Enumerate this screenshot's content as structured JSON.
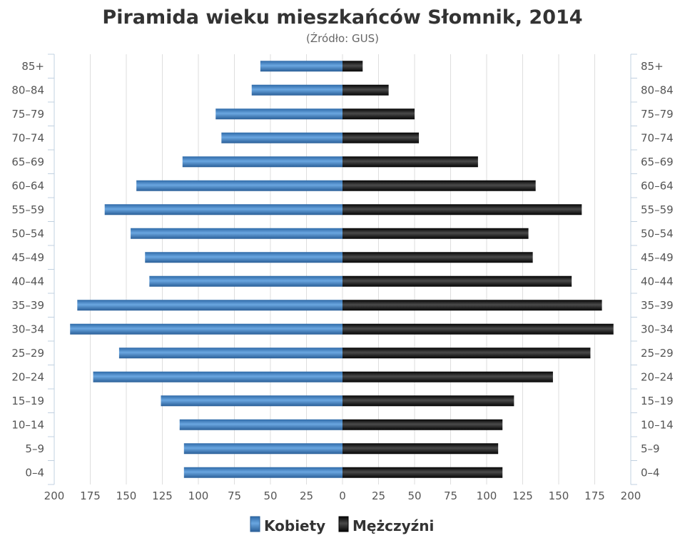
{
  "chart_data": {
    "type": "bar",
    "orientation": "horizontal",
    "layout": "population-pyramid",
    "title": "Piramida wieku mieszkańców Słomnik, 2014",
    "subtitle": "(Źródło: GUS)",
    "categories": [
      "0–4",
      "5–9",
      "10–14",
      "15–19",
      "20–24",
      "25–29",
      "30–34",
      "35–39",
      "40–44",
      "45–49",
      "50–54",
      "55–59",
      "60–64",
      "65–69",
      "70–74",
      "75–79",
      "80–84",
      "85+"
    ],
    "series": [
      {
        "name": "Kobiety",
        "side": "left",
        "values": [
          110,
          110,
          113,
          126,
          173,
          155,
          189,
          184,
          134,
          137,
          147,
          165,
          143,
          111,
          84,
          88,
          63,
          57
        ]
      },
      {
        "name": "Mężczyźni",
        "side": "right",
        "values": [
          111,
          108,
          111,
          119,
          146,
          172,
          188,
          180,
          159,
          132,
          129,
          166,
          134,
          94,
          53,
          50,
          32,
          14
        ]
      }
    ],
    "xlim": [
      -200,
      200
    ],
    "x_ticks": [
      "200",
      "175",
      "150",
      "125",
      "100",
      "75",
      "50",
      "25",
      "0",
      "25",
      "50",
      "75",
      "100",
      "125",
      "150",
      "175",
      "200"
    ],
    "grid": true,
    "legend_position": "bottom",
    "colors": {
      "Kobiety": "#3b7dc0",
      "Mężczyźni": "#1e1e1e",
      "grid": "#dedede",
      "text": "#555555",
      "title": "#333333"
    }
  }
}
